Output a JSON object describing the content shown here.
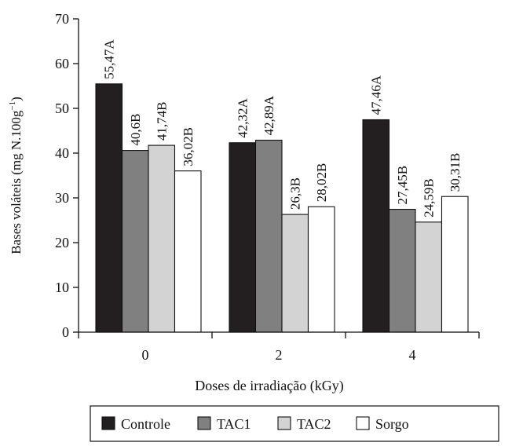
{
  "chart_data": {
    "type": "bar",
    "title": "",
    "xlabel": "Doses de irradiação (kGy)",
    "ylabel": "Bases voláteis (mg N.100g",
    "ylabel_superscript": "−1",
    "ylabel_close": ")",
    "categories": [
      "0",
      "2",
      "4"
    ],
    "ylim": [
      0,
      70
    ],
    "yticks": [
      "0",
      "10",
      "20",
      "30",
      "40",
      "50",
      "60",
      "70"
    ],
    "grid": false,
    "legend_position": "bottom",
    "series": [
      {
        "name": "Controle",
        "color": "#231f20",
        "values": [
          55.47,
          42.32,
          47.46
        ],
        "labels": [
          "55,47A",
          "42,32A",
          "47,46A"
        ]
      },
      {
        "name": "TAC1",
        "color": "#808080",
        "values": [
          40.6,
          42.89,
          27.45
        ],
        "labels": [
          "40,6B",
          "42,89A",
          "27,45B"
        ]
      },
      {
        "name": "TAC2",
        "color": "#d3d3d3",
        "values": [
          41.74,
          26.3,
          24.59
        ],
        "labels": [
          "41,74B",
          "26,3B",
          "24,59B"
        ]
      },
      {
        "name": "Sorgo",
        "color": "#ffffff",
        "values": [
          36.02,
          28.02,
          30.31
        ],
        "labels": [
          "36,02B",
          "28,02B",
          "30,31B"
        ]
      }
    ]
  }
}
